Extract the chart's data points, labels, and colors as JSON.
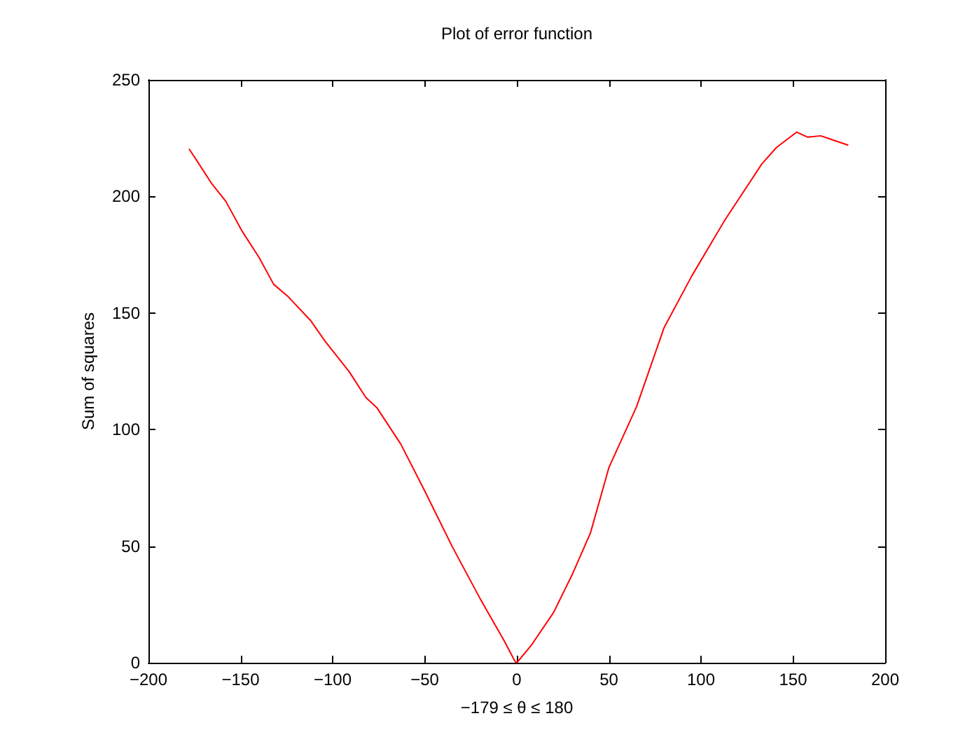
{
  "chart_data": {
    "type": "line",
    "title": "Plot of error function",
    "xlabel": "−179 ≤ θ ≤ 180",
    "ylabel": "Sum of squares",
    "xlim": [
      -200,
      200
    ],
    "xticks": [
      {
        "value": -200,
        "label": "−200"
      },
      {
        "value": -150,
        "label": "−150"
      },
      {
        "value": -100,
        "label": "−100"
      },
      {
        "value": -50,
        "label": "−50"
      },
      0,
      50,
      100,
      150,
      200
    ],
    "ylim": [
      0,
      250
    ],
    "yticks": [
      0,
      50,
      100,
      150,
      200,
      250
    ],
    "grid": false,
    "marker": "none",
    "line_style": "solid",
    "series": [
      {
        "color": "#ff0000",
        "x": [
          -178,
          -175,
          -166,
          -158,
          -149,
          -140,
          -132,
          -124,
          -112,
          -104,
          -91,
          -82,
          -76,
          -63,
          -50,
          -35,
          -20,
          -7,
          -1,
          0,
          8,
          20,
          30,
          40,
          50,
          65,
          80,
          95,
          113,
          133,
          141,
          152,
          158,
          165,
          171,
          180
        ],
        "values": [
          220.4,
          216.9,
          205.9,
          197.9,
          184.9,
          173.9,
          162.3,
          156.9,
          146.8,
          137.8,
          124.8,
          113.8,
          109.4,
          93.8,
          73.7,
          49.7,
          27.6,
          9.6,
          0.6,
          0,
          7.6,
          21.6,
          37.7,
          55.7,
          83.7,
          109.8,
          143.8,
          165.9,
          189.9,
          213.9,
          221,
          227.6,
          225.4,
          226,
          224.4,
          222
        ]
      }
    ]
  }
}
